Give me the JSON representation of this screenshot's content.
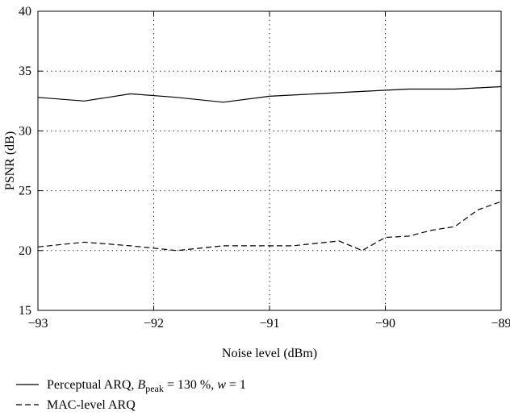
{
  "chart_data": {
    "type": "line",
    "xlabel": "Noise level (dBm)",
    "ylabel": "PSNR (dB)",
    "xlim": [
      -93,
      -89
    ],
    "ylim": [
      15,
      40
    ],
    "xticks": [
      -93,
      -92,
      -91,
      -90,
      -89
    ],
    "yticks": [
      15,
      20,
      25,
      30,
      35,
      40
    ],
    "xtick_labels": [
      "−93",
      "−92",
      "−91",
      "−90",
      "−89"
    ],
    "ytick_labels": [
      "15",
      "20",
      "25",
      "30",
      "35",
      "40"
    ],
    "grid": true,
    "legend_position": "below",
    "series": [
      {
        "name": "Perceptual ARQ, B_peak = 130%, w = 1",
        "legend_parts": {
          "prefix": "Perceptual ARQ, ",
          "var": "B",
          "sub": "peak",
          "middle": " = 130 %, ",
          "var2": "w",
          "suffix": " = 1"
        },
        "line_style": "solid",
        "color": "#000000",
        "x": [
          -93,
          -92.6,
          -92.2,
          -91.8,
          -91.4,
          -91.0,
          -90.6,
          -90.2,
          -89.8,
          -89.4,
          -89.0
        ],
        "y": [
          32.8,
          32.5,
          33.1,
          32.8,
          32.4,
          32.9,
          33.1,
          33.3,
          33.5,
          33.5,
          33.7
        ]
      },
      {
        "name": "MAC-level ARQ",
        "legend_parts": {
          "prefix": "MAC-level ARQ"
        },
        "line_style": "dashed",
        "color": "#000000",
        "x": [
          -93,
          -92.6,
          -92.2,
          -91.8,
          -91.4,
          -91.0,
          -90.8,
          -90.4,
          -90.2,
          -90.0,
          -89.8,
          -89.6,
          -89.4,
          -89.2,
          -89.0
        ],
        "y": [
          20.3,
          20.7,
          20.4,
          20.0,
          20.4,
          20.4,
          20.4,
          20.8,
          20.0,
          21.1,
          21.2,
          21.7,
          22.0,
          23.4,
          24.1
        ]
      }
    ]
  }
}
